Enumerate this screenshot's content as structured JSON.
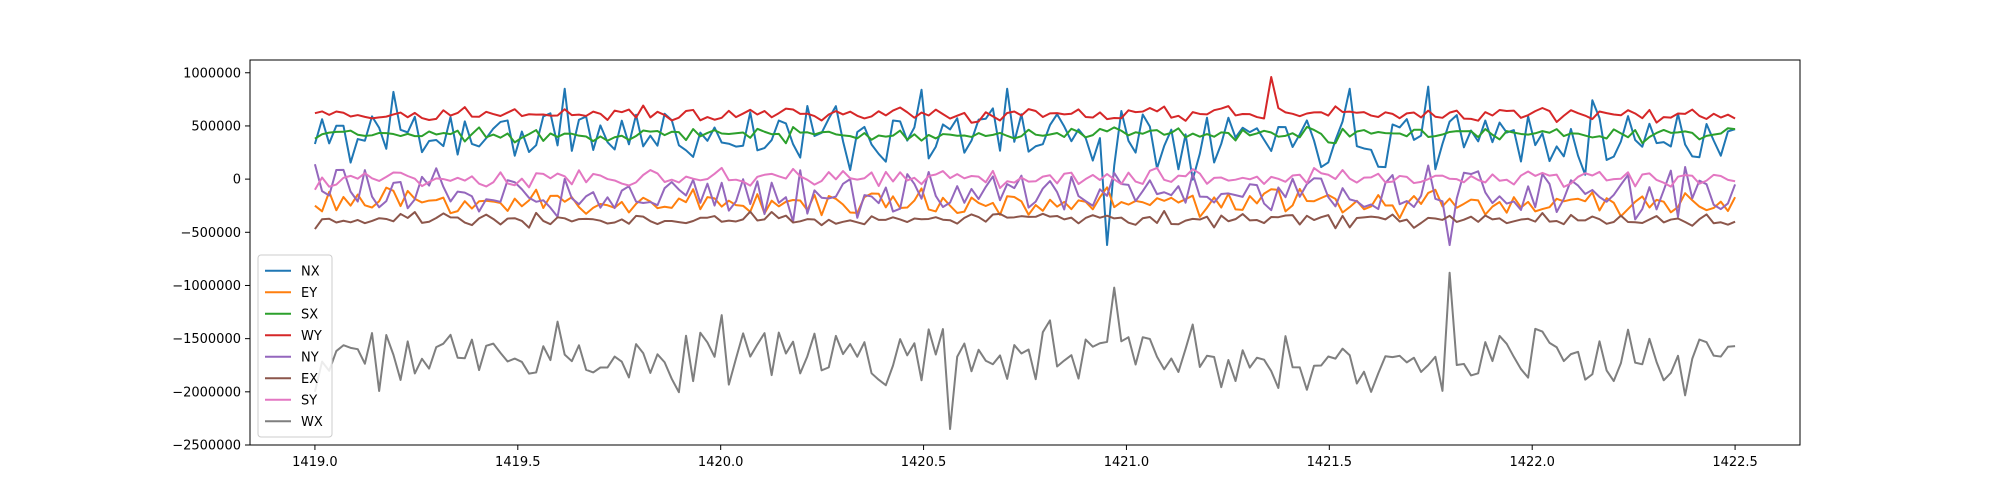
{
  "chart_data": {
    "type": "line",
    "title": "",
    "xlabel": "",
    "ylabel": "",
    "xlim": [
      1418.84,
      1422.66
    ],
    "ylim": [
      -2500000,
      1120000
    ],
    "grid": false,
    "legend_position": "lower-left",
    "x_start": 1419.0,
    "x_end": 1422.5,
    "n_points": 200,
    "x_ticks": [
      {
        "value": 1419.0,
        "label": "1419.0"
      },
      {
        "value": 1419.5,
        "label": "1419.5"
      },
      {
        "value": 1420.0,
        "label": "1420.0"
      },
      {
        "value": 1420.5,
        "label": "1420.5"
      },
      {
        "value": 1421.0,
        "label": "1421.0"
      },
      {
        "value": 1421.5,
        "label": "1421.5"
      },
      {
        "value": 1422.0,
        "label": "1422.0"
      },
      {
        "value": 1422.5,
        "label": "1422.5"
      }
    ],
    "y_ticks": [
      {
        "value": 1000000,
        "label": "1000000"
      },
      {
        "value": 500000,
        "label": "500000"
      },
      {
        "value": 0,
        "label": "0"
      },
      {
        "value": -500000,
        "label": "−500000"
      },
      {
        "value": -1000000,
        "label": "−1000000"
      },
      {
        "value": -1500000,
        "label": "−1500000"
      },
      {
        "value": -2000000,
        "label": "−2000000"
      },
      {
        "value": -2500000,
        "label": "−2500000"
      }
    ],
    "series": [
      {
        "name": "NX",
        "color": "#1f77b4",
        "mean": 420000,
        "amplitude": 260000,
        "seed": 11,
        "anchors": [
          [
            1419.0,
            330000
          ],
          [
            1419.2,
            820000
          ],
          [
            1419.62,
            850000
          ],
          [
            1420.5,
            840000
          ],
          [
            1420.7,
            850000
          ],
          [
            1420.95,
            -620000
          ],
          [
            1421.55,
            850000
          ],
          [
            1421.75,
            870000
          ],
          [
            1422.5,
            470000
          ]
        ]
      },
      {
        "name": "EY",
        "color": "#ff7f0e",
        "mean": -220000,
        "amplitude": 110000,
        "seed": 23,
        "anchors": [
          [
            1419.0,
            -250000
          ],
          [
            1422.5,
            -170000
          ]
        ]
      },
      {
        "name": "SX",
        "color": "#2ca02c",
        "mean": 420000,
        "amplitude": 55000,
        "seed": 37,
        "anchors": [
          [
            1419.0,
            380000
          ],
          [
            1422.5,
            470000
          ]
        ]
      },
      {
        "name": "WY",
        "color": "#d62728",
        "mean": 610000,
        "amplitude": 60000,
        "seed": 41,
        "anchors": [
          [
            1419.0,
            620000
          ],
          [
            1421.35,
            960000
          ],
          [
            1422.5,
            570000
          ]
        ]
      },
      {
        "name": "NY",
        "color": "#9467bd",
        "mean": -130000,
        "amplitude": 180000,
        "seed": 53,
        "anchors": [
          [
            1419.0,
            140000
          ],
          [
            1421.8,
            -620000
          ],
          [
            1422.5,
            -50000
          ]
        ]
      },
      {
        "name": "EX",
        "color": "#8c564b",
        "mean": -380000,
        "amplitude": 60000,
        "seed": 67,
        "anchors": [
          [
            1419.0,
            -470000
          ],
          [
            1422.5,
            -400000
          ]
        ]
      },
      {
        "name": "SY",
        "color": "#e377c2",
        "mean": 10000,
        "amplitude": 70000,
        "seed": 79,
        "anchors": [
          [
            1419.0,
            -100000
          ],
          [
            1422.5,
            -20000
          ]
        ]
      },
      {
        "name": "WX",
        "color": "#7f7f7f",
        "mean": -1670000,
        "amplitude": 260000,
        "seed": 97,
        "anchors": [
          [
            1419.0,
            -2000000
          ],
          [
            1420.57,
            -2350000
          ],
          [
            1420.97,
            -1020000
          ],
          [
            1421.8,
            -880000
          ],
          [
            1422.5,
            -1570000
          ]
        ]
      }
    ]
  }
}
